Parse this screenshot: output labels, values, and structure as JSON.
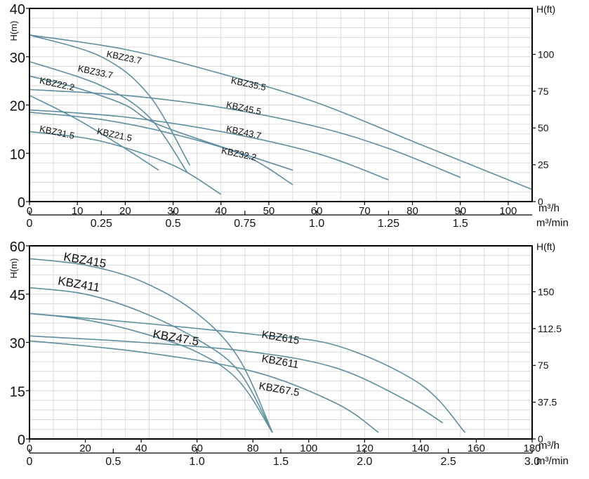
{
  "chart_data": [
    {
      "type": "line",
      "title": "",
      "xlabel": "m³/h",
      "x2label": "m³/min",
      "ylabel": "H(m)",
      "y2label": "H(ft)",
      "xlim": [
        0,
        105
      ],
      "ylim": [
        0,
        40
      ],
      "x_ticks": [
        "0",
        "10",
        "20",
        "30",
        "40",
        "50",
        "60",
        "70",
        "80",
        "90",
        "100"
      ],
      "x2_ticks": [
        "0",
        "0.25",
        "0.5",
        "0.75",
        "1.0",
        "1.25",
        "1.5"
      ],
      "y_ticks": [
        "0",
        "10",
        "20",
        "30",
        "40"
      ],
      "y2_ticks": [
        "0",
        "25",
        "50",
        "75",
        "100"
      ],
      "grid": true,
      "line_color": "#5e8fa0",
      "series": [
        {
          "name": "KBZ35.5",
          "x": [
            0,
            20,
            40,
            60,
            80,
            95,
            105
          ],
          "y": [
            34.5,
            31.5,
            26.5,
            20.5,
            12.5,
            6.5,
            2.5
          ],
          "label_at": [
            42,
            24.5
          ]
        },
        {
          "name": "KBZ45.5",
          "x": [
            0,
            20,
            40,
            60,
            75,
            90
          ],
          "y": [
            23.2,
            22,
            19.5,
            15.5,
            11,
            5
          ],
          "label_at": [
            41,
            19.5
          ]
        },
        {
          "name": "KBZ43.7",
          "x": [
            0,
            20,
            40,
            60,
            75
          ],
          "y": [
            19,
            17.5,
            14.5,
            10,
            4.5
          ],
          "label_at": [
            41,
            14.5
          ]
        },
        {
          "name": "KBZ23.7",
          "x": [
            0,
            15,
            25,
            33.5
          ],
          "y": [
            34.5,
            30,
            22,
            7.5
          ],
          "label_at": [
            16,
            30
          ]
        },
        {
          "name": "KBZ33.7",
          "x": [
            0,
            15,
            25,
            33
          ],
          "y": [
            29,
            24,
            17.5,
            6
          ],
          "label_at": [
            10,
            27
          ]
        },
        {
          "name": "KBZ22.2",
          "x": [
            0,
            10,
            20,
            28,
            55
          ],
          "y": [
            26,
            23.5,
            20,
            15.5,
            6.5
          ],
          "label_at": [
            2,
            24.5
          ]
        },
        {
          "name": "KBZ32.2",
          "x": [
            0,
            15,
            30,
            45,
            55
          ],
          "y": [
            18.5,
            17,
            14,
            9.5,
            3.5
          ],
          "label_at": [
            40,
            10
          ]
        },
        {
          "name": "KBZ21.5",
          "x": [
            0,
            10,
            20,
            27
          ],
          "y": [
            22,
            17,
            11,
            6.5
          ],
          "label_at": [
            14,
            14
          ]
        },
        {
          "name": "KBZ31.5",
          "x": [
            0,
            15,
            30,
            40
          ],
          "y": [
            14.5,
            12.5,
            7.5,
            1.5
          ],
          "label_at": [
            2,
            14.5
          ]
        }
      ]
    },
    {
      "type": "line",
      "title": "",
      "xlabel": "m³/h",
      "x2label": "m³/min",
      "ylabel": "H(m)",
      "y2label": "H(ft)",
      "xlim": [
        0,
        180
      ],
      "ylim": [
        0,
        60
      ],
      "x_ticks": [
        "0",
        "20",
        "40",
        "60",
        "80",
        "100",
        "120",
        "140",
        "160",
        "180"
      ],
      "x2_ticks": [
        "0",
        "0.5",
        "1.0",
        "1.5",
        "2.0",
        "2.5",
        "3.0"
      ],
      "y_ticks": [
        "0",
        "15",
        "30",
        "45",
        "60"
      ],
      "y2_ticks": [
        "0",
        "37.5",
        "75",
        "112.5",
        "150"
      ],
      "grid": true,
      "line_color": "#5e8fa0",
      "series": [
        {
          "name": "KBZ415",
          "x": [
            0,
            20,
            40,
            60,
            75,
            87
          ],
          "y": [
            56,
            54,
            49,
            39,
            25,
            2
          ],
          "label_at": [
            12,
            55.5
          ]
        },
        {
          "name": "KBZ411",
          "x": [
            0,
            20,
            40,
            60,
            75,
            87
          ],
          "y": [
            47,
            45,
            39.5,
            31,
            21,
            2
          ],
          "label_at": [
            10,
            48
          ]
        },
        {
          "name": "KBZ47.5",
          "x": [
            0,
            20,
            40,
            60,
            75,
            87
          ],
          "y": [
            39,
            37,
            33,
            27,
            18,
            2
          ],
          "label_at": [
            44,
            31.5
          ]
        },
        {
          "name": "KBZ615",
          "x": [
            0,
            40,
            80,
            110,
            140,
            156
          ],
          "y": [
            39,
            36,
            32.5,
            29,
            17,
            2
          ],
          "label_at": [
            83,
            31.5
          ]
        },
        {
          "name": "KBZ611",
          "x": [
            0,
            40,
            80,
            110,
            135,
            148
          ],
          "y": [
            32,
            30,
            27,
            22,
            12,
            5
          ],
          "label_at": [
            83,
            24
          ]
        },
        {
          "name": "KBZ67.5",
          "x": [
            0,
            40,
            80,
            110,
            125
          ],
          "y": [
            30.5,
            27,
            21,
            11,
            2
          ],
          "label_at": [
            82,
            15.5
          ]
        }
      ]
    }
  ]
}
